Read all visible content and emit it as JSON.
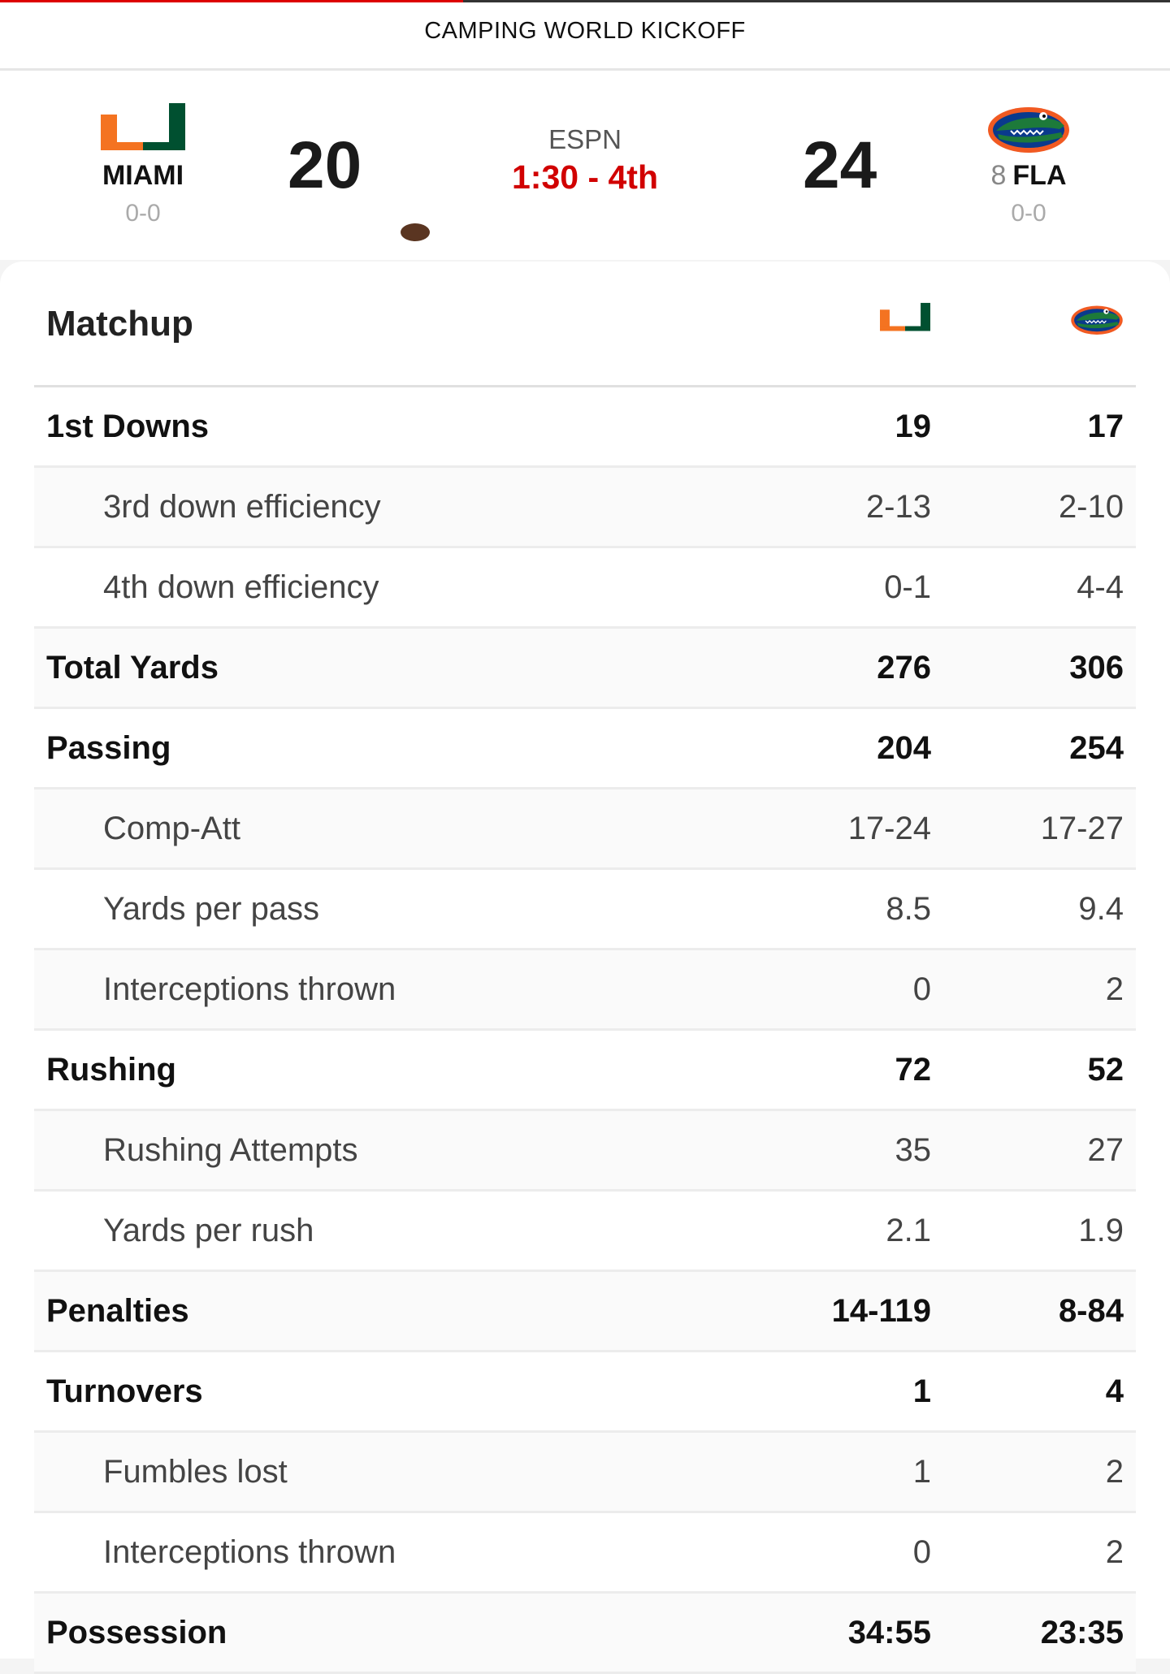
{
  "header": {
    "event_title": "CAMPING WORLD KICKOFF"
  },
  "game": {
    "network": "ESPN",
    "clock": "1:30 - 4th",
    "away": {
      "name": "MIAMI",
      "record": "0-0",
      "score": "20",
      "logo": "miami-u-logo-icon",
      "possession": true
    },
    "home": {
      "name": "FLA",
      "rank": "8",
      "record": "0-0",
      "score": "24",
      "logo": "florida-gator-logo-icon"
    }
  },
  "matchup": {
    "title": "Matchup",
    "rows": [
      {
        "label": "1st Downs",
        "away": "19",
        "home": "17",
        "type": "main",
        "shaded": false
      },
      {
        "label": "3rd down efficiency",
        "away": "2-13",
        "home": "2-10",
        "type": "sub",
        "shaded": true
      },
      {
        "label": "4th down efficiency",
        "away": "0-1",
        "home": "4-4",
        "type": "sub",
        "shaded": false
      },
      {
        "label": "Total Yards",
        "away": "276",
        "home": "306",
        "type": "main",
        "shaded": true
      },
      {
        "label": "Passing",
        "away": "204",
        "home": "254",
        "type": "main",
        "shaded": false
      },
      {
        "label": "Comp-Att",
        "away": "17-24",
        "home": "17-27",
        "type": "sub",
        "shaded": true
      },
      {
        "label": "Yards per pass",
        "away": "8.5",
        "home": "9.4",
        "type": "sub",
        "shaded": false
      },
      {
        "label": "Interceptions thrown",
        "away": "0",
        "home": "2",
        "type": "sub",
        "shaded": true
      },
      {
        "label": "Rushing",
        "away": "72",
        "home": "52",
        "type": "main",
        "shaded": false
      },
      {
        "label": "Rushing Attempts",
        "away": "35",
        "home": "27",
        "type": "sub",
        "shaded": true
      },
      {
        "label": "Yards per rush",
        "away": "2.1",
        "home": "1.9",
        "type": "sub",
        "shaded": false
      },
      {
        "label": "Penalties",
        "away": "14-119",
        "home": "8-84",
        "type": "main",
        "shaded": true
      },
      {
        "label": "Turnovers",
        "away": "1",
        "home": "4",
        "type": "main",
        "shaded": false
      },
      {
        "label": "Fumbles lost",
        "away": "1",
        "home": "2",
        "type": "sub",
        "shaded": true
      },
      {
        "label": "Interceptions thrown",
        "away": "0",
        "home": "2",
        "type": "sub",
        "shaded": false
      },
      {
        "label": "Possession",
        "away": "34:55",
        "home": "23:35",
        "type": "main",
        "shaded": true
      }
    ]
  },
  "colors": {
    "miami_orange": "#f47321",
    "miami_green": "#005030",
    "live_red": "#d10000",
    "gator_blue": "#0a3a8c",
    "gator_green": "#1d7a3a",
    "gator_orange": "#f15a22"
  }
}
